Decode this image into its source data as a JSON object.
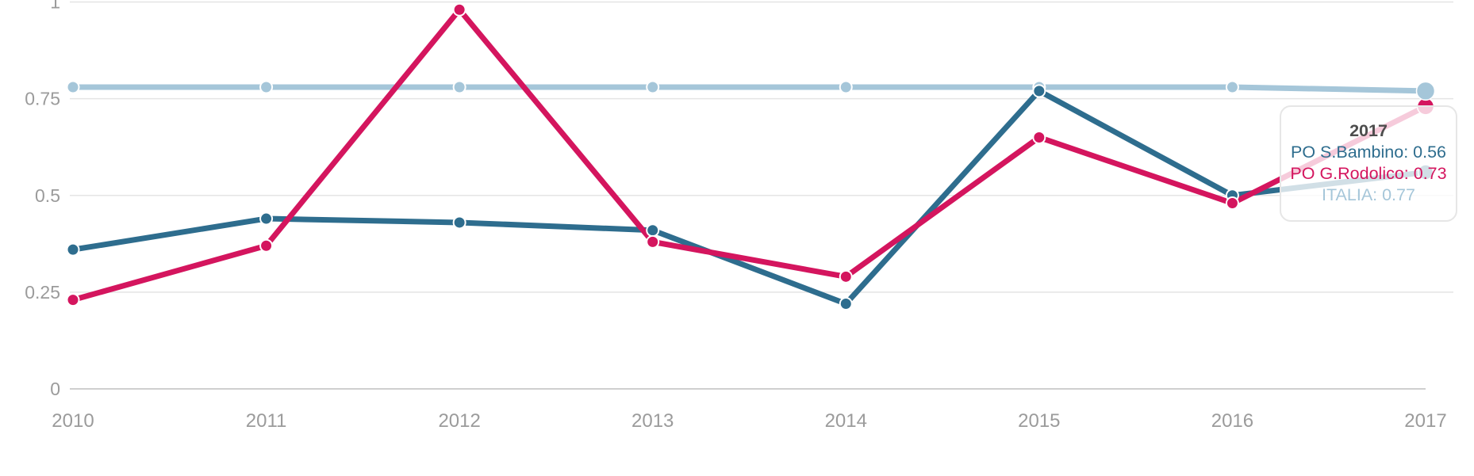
{
  "chart_data": {
    "type": "line",
    "title": "",
    "xlabel": "",
    "ylabel": "",
    "x_categories": [
      "2010",
      "2011",
      "2012",
      "2013",
      "2014",
      "2015",
      "2016",
      "2017"
    ],
    "y_ticks": [
      0,
      0.25,
      0.5,
      0.75,
      1
    ],
    "y_tick_labels": [
      "0",
      "0.25",
      "0.5",
      "0.75",
      "1"
    ],
    "ylim": [
      0,
      1.0
    ],
    "grid": true,
    "legend_position": "none",
    "highlighted_category": "2017",
    "series": [
      {
        "name": "ITALIA",
        "color": "#a5c6d9",
        "values": [
          0.78,
          0.78,
          0.78,
          0.78,
          0.78,
          0.78,
          0.78,
          0.77
        ]
      },
      {
        "name": "PO S.Bambino",
        "color": "#2e6d8e",
        "values": [
          0.36,
          0.44,
          0.43,
          0.41,
          0.22,
          0.77,
          0.5,
          0.56
        ]
      },
      {
        "name": "PO G.Rodolico",
        "color": "#d4155e",
        "values": [
          0.23,
          0.37,
          0.98,
          0.38,
          0.29,
          0.65,
          0.48,
          0.73
        ]
      }
    ]
  },
  "tooltip": {
    "title": "2017",
    "rows": [
      {
        "label": "PO S.Bambino",
        "value": "0.56",
        "text": "PO S.Bambino: 0.56",
        "color": "#2e6d8e"
      },
      {
        "label": "PO G.Rodolico",
        "value": "0.73",
        "text": "PO G.Rodolico: 0.73",
        "color": "#d4155e"
      },
      {
        "label": "ITALIA",
        "value": "0.77",
        "text": "ITALIA: 0.77",
        "color": "#a5c6d9"
      }
    ]
  },
  "colors": {
    "gridline": "#e4e4e4",
    "zero_axis": "#cfcfcf",
    "axis_text": "#9b9b9b",
    "dot_outline": "#ffffff",
    "tooltip_title": "#4d4d4d"
  }
}
